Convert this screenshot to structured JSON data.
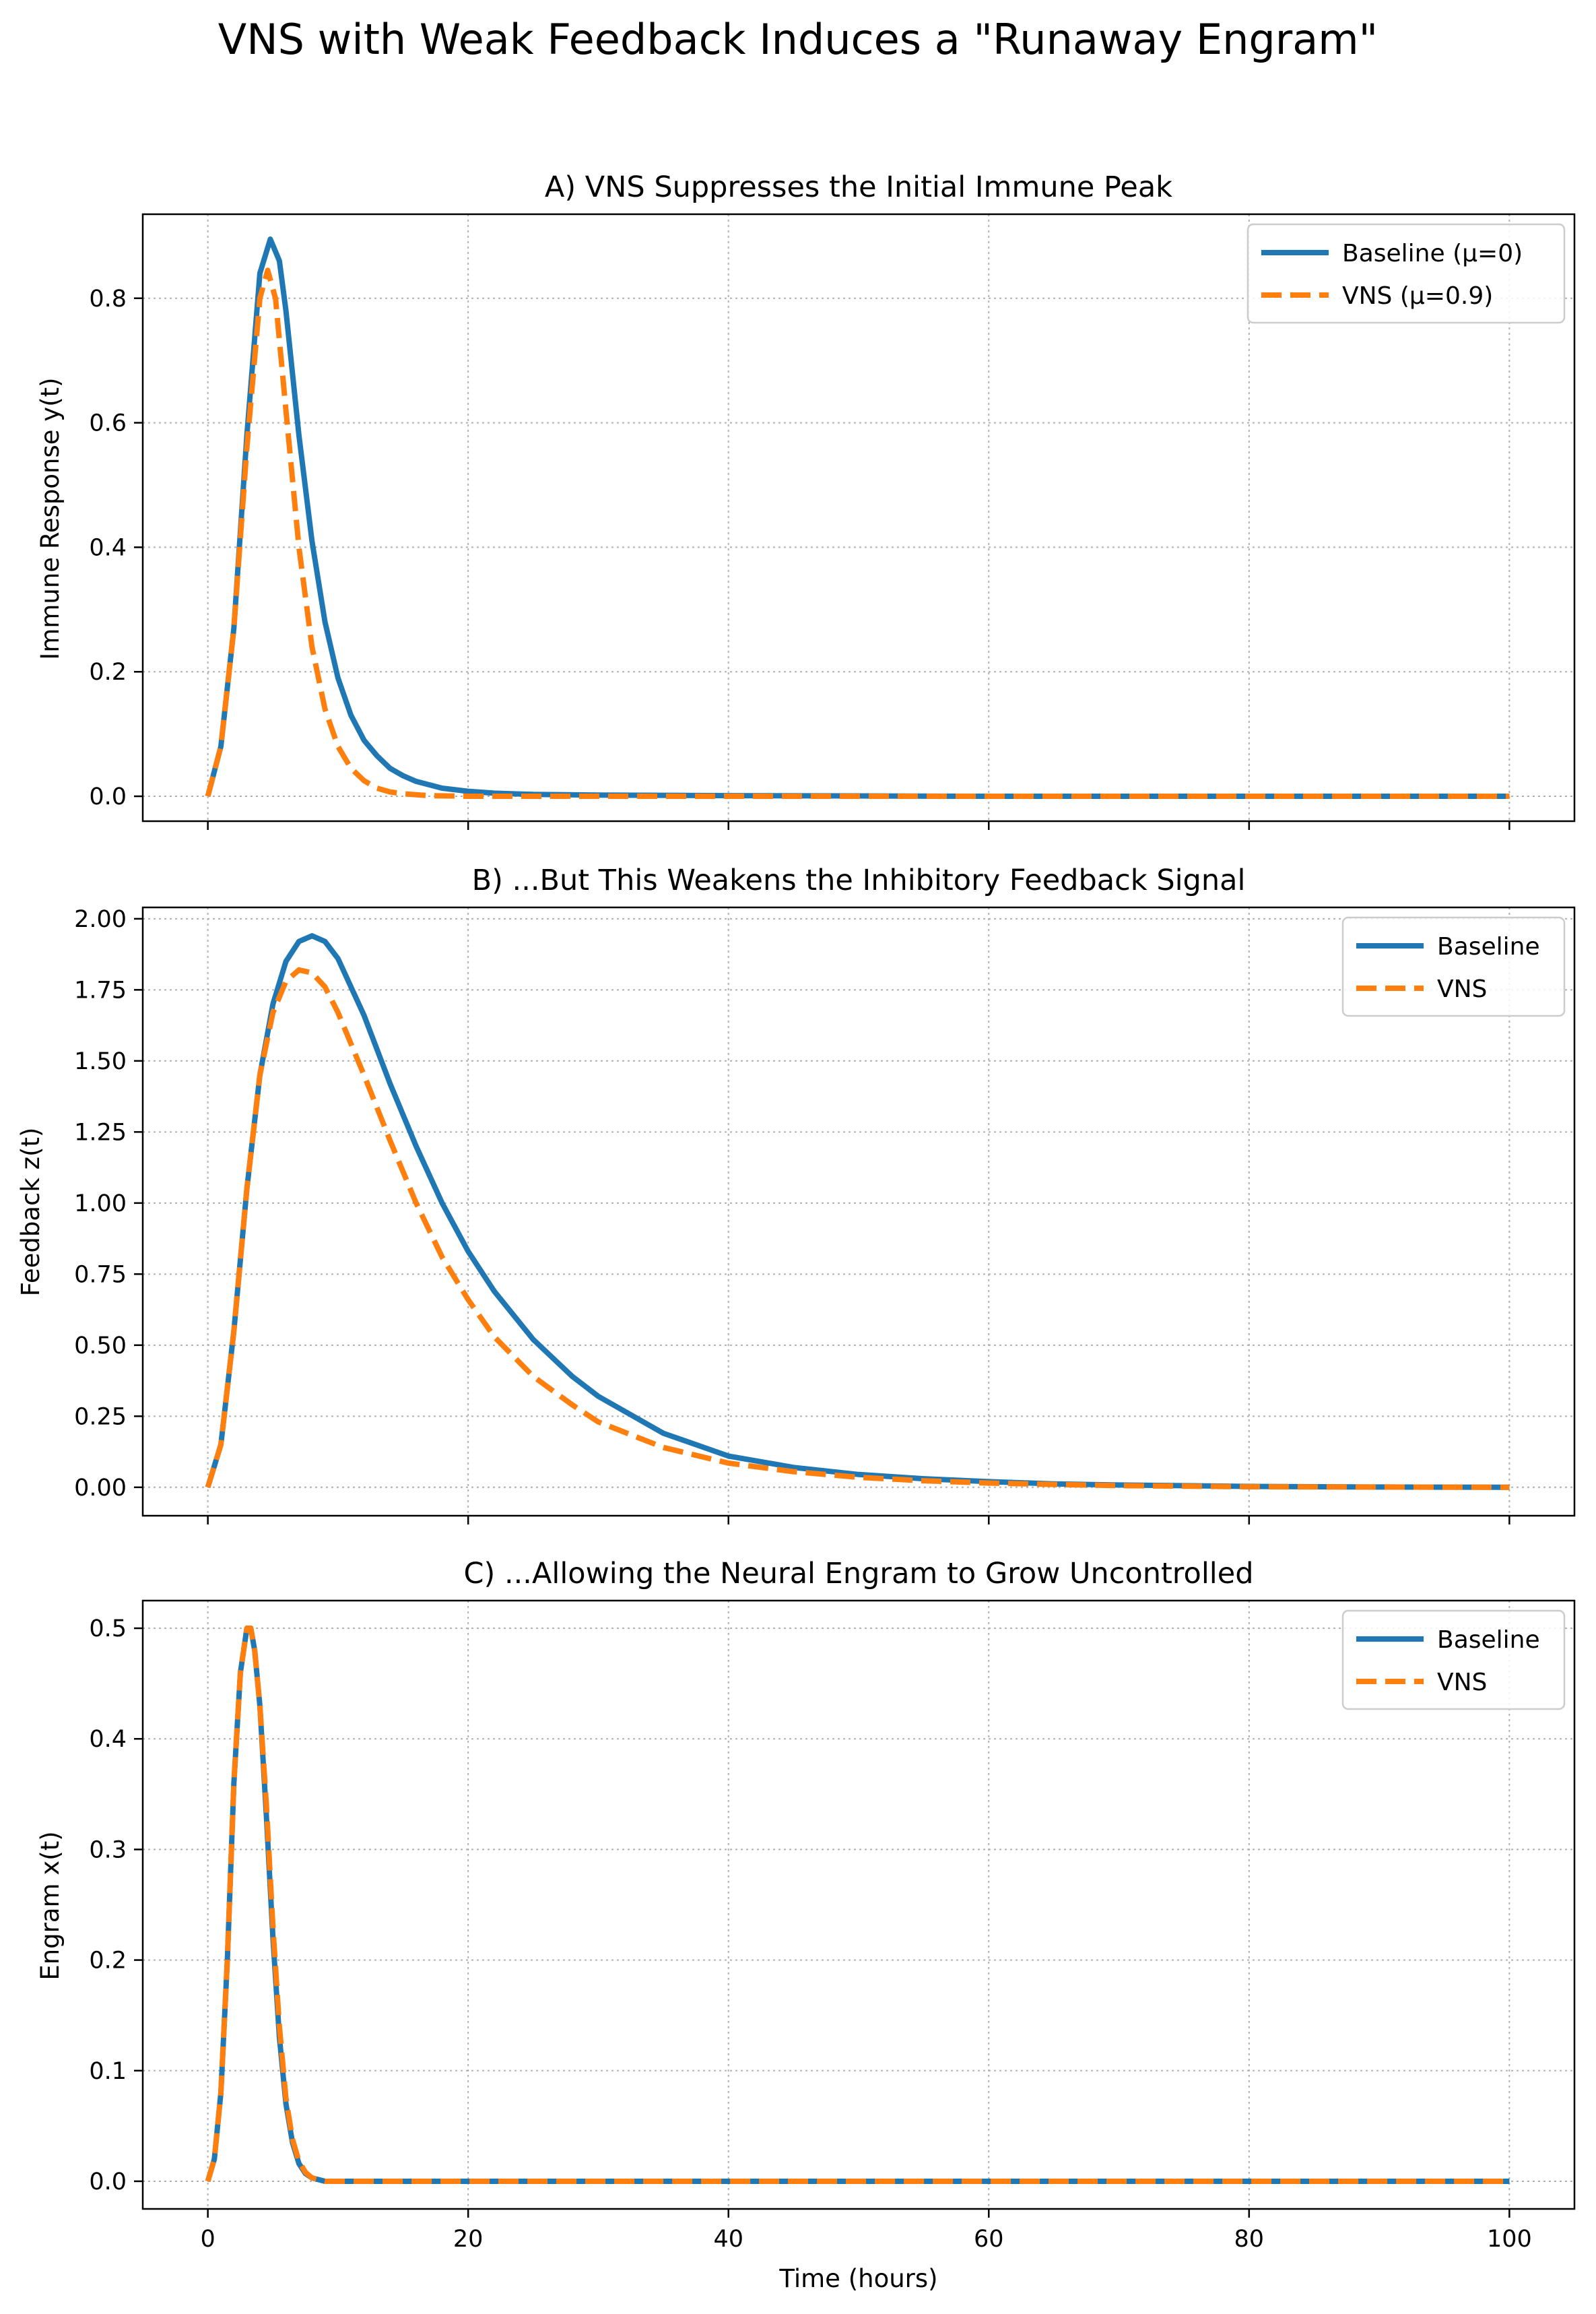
{
  "figure": {
    "suptitle": "VNS with Weak Feedback Induces a \"Runaway Engram\"",
    "xlabel": "Time (hours)",
    "colors": {
      "baseline": "#1f77b4",
      "vns": "#ff7f0e",
      "grid": "#b0b0b0"
    }
  },
  "chart_data": [
    {
      "type": "line",
      "title": "A) VNS Suppresses the Initial Immune Peak",
      "xlabel": "",
      "ylabel": "Immune Response y(t)",
      "xlim": [
        -5,
        105
      ],
      "ylim": [
        -0.04,
        0.935
      ],
      "xticks": [
        0,
        20,
        40,
        60,
        80,
        100
      ],
      "yticks": [
        0.0,
        0.2,
        0.4,
        0.6,
        0.8
      ],
      "ytick_labels": [
        "0.0",
        "0.2",
        "0.4",
        "0.6",
        "0.8"
      ],
      "grid": true,
      "legend": "top-right",
      "series": [
        {
          "name": "Baseline (μ=0)",
          "style": "solid",
          "x": [
            0,
            1,
            2,
            3,
            4,
            4.8,
            5.5,
            6,
            7,
            8,
            9,
            10,
            11,
            12,
            13,
            14,
            15,
            16,
            18,
            20,
            22,
            25,
            30,
            40,
            60,
            80,
            100
          ],
          "y": [
            0,
            0.08,
            0.27,
            0.58,
            0.84,
            0.895,
            0.86,
            0.78,
            0.58,
            0.41,
            0.28,
            0.19,
            0.13,
            0.09,
            0.065,
            0.045,
            0.033,
            0.024,
            0.013,
            0.008,
            0.005,
            0.003,
            0.002,
            0.001,
            0,
            0,
            0
          ]
        },
        {
          "name": "VNS (μ=0.9)",
          "style": "dashed",
          "x": [
            0,
            1,
            2,
            3,
            4,
            4.6,
            5.2,
            6,
            7,
            8,
            9,
            10,
            11,
            12,
            13,
            14,
            15,
            17,
            20,
            25,
            30,
            40,
            60,
            80,
            100
          ],
          "y": [
            0,
            0.08,
            0.27,
            0.56,
            0.8,
            0.845,
            0.8,
            0.62,
            0.4,
            0.24,
            0.14,
            0.08,
            0.045,
            0.025,
            0.013,
            0.007,
            0.004,
            0.001,
            0,
            0,
            0,
            0,
            0,
            0,
            0
          ]
        }
      ]
    },
    {
      "type": "line",
      "title": "B) ...But This Weakens the Inhibitory Feedback Signal",
      "xlabel": "",
      "ylabel": "Feedback z(t)",
      "xlim": [
        -5,
        105
      ],
      "ylim": [
        -0.1,
        2.04
      ],
      "xticks": [
        0,
        20,
        40,
        60,
        80,
        100
      ],
      "yticks": [
        0.0,
        0.25,
        0.5,
        0.75,
        1.0,
        1.25,
        1.5,
        1.75,
        2.0
      ],
      "ytick_labels": [
        "0.00",
        "0.25",
        "0.50",
        "0.75",
        "1.00",
        "1.25",
        "1.50",
        "1.75",
        "2.00"
      ],
      "grid": true,
      "legend": "top-right",
      "series": [
        {
          "name": "Baseline",
          "style": "solid",
          "x": [
            0,
            1,
            2,
            3,
            4,
            5,
            6,
            7,
            8,
            9,
            10,
            12,
            14,
            16,
            18,
            20,
            22,
            25,
            28,
            30,
            35,
            40,
            45,
            50,
            55,
            60,
            65,
            70,
            80,
            90,
            100
          ],
          "y": [
            0,
            0.15,
            0.55,
            1.05,
            1.45,
            1.7,
            1.85,
            1.92,
            1.94,
            1.92,
            1.86,
            1.66,
            1.42,
            1.2,
            1.0,
            0.83,
            0.69,
            0.52,
            0.39,
            0.32,
            0.19,
            0.11,
            0.07,
            0.045,
            0.03,
            0.02,
            0.012,
            0.008,
            0.003,
            0.001,
            0
          ]
        },
        {
          "name": "VNS",
          "style": "dashed",
          "x": [
            0,
            1,
            2,
            3,
            4,
            5,
            6,
            7,
            8,
            9,
            10,
            12,
            14,
            16,
            18,
            20,
            22,
            25,
            28,
            30,
            35,
            40,
            45,
            50,
            55,
            60,
            65,
            70,
            80,
            90,
            100
          ],
          "y": [
            0,
            0.15,
            0.55,
            1.05,
            1.45,
            1.67,
            1.78,
            1.82,
            1.81,
            1.76,
            1.67,
            1.45,
            1.22,
            1.0,
            0.81,
            0.66,
            0.53,
            0.39,
            0.29,
            0.23,
            0.14,
            0.085,
            0.055,
            0.035,
            0.023,
            0.015,
            0.01,
            0.006,
            0.002,
            0.001,
            0
          ]
        }
      ]
    },
    {
      "type": "line",
      "title": "C) ...Allowing the Neural Engram to Grow Uncontrolled",
      "xlabel": "Time (hours)",
      "ylabel": "Engram x(t)",
      "xlim": [
        -5,
        105
      ],
      "ylim": [
        -0.025,
        0.525
      ],
      "xticks": [
        0,
        20,
        40,
        60,
        80,
        100
      ],
      "xtick_labels": [
        "0",
        "20",
        "40",
        "60",
        "80",
        "100"
      ],
      "yticks": [
        0.0,
        0.1,
        0.2,
        0.3,
        0.4,
        0.5
      ],
      "ytick_labels": [
        "0.0",
        "0.1",
        "0.2",
        "0.3",
        "0.4",
        "0.5"
      ],
      "grid": true,
      "legend": "top-right",
      "series": [
        {
          "name": "Baseline",
          "style": "solid",
          "x": [
            0,
            0.5,
            1,
            1.5,
            2,
            2.5,
            3,
            3.3,
            3.6,
            4,
            4.5,
            5,
            5.5,
            6,
            6.5,
            7,
            7.5,
            8,
            9,
            10,
            15,
            20,
            40,
            60,
            80,
            100
          ],
          "y": [
            0,
            0.02,
            0.08,
            0.2,
            0.36,
            0.46,
            0.5,
            0.5,
            0.48,
            0.43,
            0.33,
            0.22,
            0.13,
            0.07,
            0.035,
            0.016,
            0.007,
            0.003,
            0,
            0,
            0,
            0,
            0,
            0,
            0,
            0
          ]
        },
        {
          "name": "VNS",
          "style": "dashed",
          "x": [
            0,
            0.5,
            1,
            1.5,
            2,
            2.5,
            3,
            3.3,
            3.6,
            4,
            4.5,
            5,
            5.5,
            6,
            6.5,
            7,
            7.5,
            8,
            9,
            10,
            15,
            20,
            40,
            60,
            80,
            100
          ],
          "y": [
            0,
            0.02,
            0.08,
            0.2,
            0.36,
            0.46,
            0.5,
            0.5,
            0.48,
            0.43,
            0.34,
            0.23,
            0.14,
            0.075,
            0.038,
            0.018,
            0.008,
            0.003,
            0,
            0,
            0,
            0,
            0,
            0,
            0,
            0
          ]
        }
      ]
    }
  ]
}
